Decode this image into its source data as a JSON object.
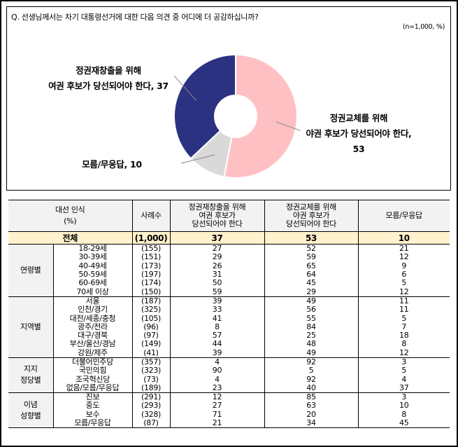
{
  "question": "Q. 선생님께서는 차기 대통령선거에 대한 다음 의견 중 어디에 더 공감하십니까?",
  "note": "(n=1,000,  %)",
  "chart_data": {
    "type": "pie",
    "subtype": "donut",
    "title": "Q. 선생님께서는 차기 대통령선거에 대한 다음 의견 중 어디에 더 공감하십니까?",
    "note": "(n=1,000, %)",
    "categories": [
      "정권재창출을 위해 여권 후보가 당선되어야 한다",
      "정권교체를 위해 야권 후보가 당선되어야 한다",
      "모름/무응답"
    ],
    "values": [
      37,
      53,
      10
    ],
    "colors": [
      "#2b3282",
      "#ffc0c4",
      "#d9d9d9"
    ],
    "labels": [
      "정권재창출을 위해 여권 후보가 당선되어야 한다, 37",
      "정권교체를 위해 야권 후보가 당선되어야 한다, 53",
      "모름/무응답, 10"
    ]
  },
  "labels": {
    "a_line1": "정권재창출을 위해",
    "a_line2": "여권 후보가 당선되어야 한다, 37",
    "b_line1": "정권교체를 위해",
    "b_line2": "야권 후보가 당선되어야 한다,",
    "b_line3": "53",
    "c_line1": "모름/무응답, 10"
  },
  "table": {
    "header": {
      "col0_l1": "대선 인식",
      "col0_l2": "(%)",
      "n": "사례수",
      "c1_l1": "정권재창출을 위해",
      "c1_l2": "여권 후보가",
      "c1_l3": "당선되어야 한다",
      "c2_l1": "정권교체를 위해",
      "c2_l2": "야권 후보가",
      "c2_l3": "당선되어야 한다",
      "c3": "모름/무응답"
    },
    "total": {
      "label": "전체",
      "n": "(1,000)",
      "c1": "37",
      "c2": "53",
      "c3": "10"
    },
    "groups": [
      {
        "name_l1": "연령별",
        "name_l2": "",
        "rows": [
          {
            "label": "18-29세",
            "n": "(155)",
            "c1": "27",
            "c2": "52",
            "c3": "21"
          },
          {
            "label": "30-39세",
            "n": "(151)",
            "c1": "29",
            "c2": "59",
            "c3": "12"
          },
          {
            "label": "40-49세",
            "n": "(173)",
            "c1": "26",
            "c2": "65",
            "c3": "9"
          },
          {
            "label": "50-59세",
            "n": "(197)",
            "c1": "31",
            "c2": "64",
            "c3": "6"
          },
          {
            "label": "60-69세",
            "n": "(174)",
            "c1": "50",
            "c2": "45",
            "c3": "5"
          },
          {
            "label": "70세 이상",
            "n": "(150)",
            "c1": "59",
            "c2": "29",
            "c3": "12"
          }
        ]
      },
      {
        "name_l1": "지역별",
        "name_l2": "",
        "rows": [
          {
            "label": "서울",
            "n": "(187)",
            "c1": "39",
            "c2": "49",
            "c3": "11"
          },
          {
            "label": "인천/경기",
            "n": "(325)",
            "c1": "33",
            "c2": "56",
            "c3": "11"
          },
          {
            "label": "대전/세종/충청",
            "n": "(105)",
            "c1": "41",
            "c2": "55",
            "c3": "5"
          },
          {
            "label": "광주/전라",
            "n": "(96)",
            "c1": "8",
            "c2": "84",
            "c3": "7"
          },
          {
            "label": "대구/경북",
            "n": "(97)",
            "c1": "57",
            "c2": "25",
            "c3": "18"
          },
          {
            "label": "부산/울산/경남",
            "n": "(149)",
            "c1": "44",
            "c2": "48",
            "c3": "8"
          },
          {
            "label": "강원/제주",
            "n": "(41)",
            "c1": "39",
            "c2": "49",
            "c3": "12"
          }
        ]
      },
      {
        "name_l1": "지지",
        "name_l2": "정당별",
        "rows": [
          {
            "label": "더불어민주당",
            "n": "(357)",
            "c1": "4",
            "c2": "92",
            "c3": "3"
          },
          {
            "label": "국민의힘",
            "n": "(323)",
            "c1": "90",
            "c2": "5",
            "c3": "5"
          },
          {
            "label": "조국혁신당",
            "n": "(73)",
            "c1": "4",
            "c2": "92",
            "c3": "4"
          },
          {
            "label": "없음/모름/무응답",
            "n": "(189)",
            "c1": "23",
            "c2": "40",
            "c3": "37"
          }
        ]
      },
      {
        "name_l1": "이념",
        "name_l2": "성향별",
        "rows": [
          {
            "label": "진보",
            "n": "(291)",
            "c1": "12",
            "c2": "85",
            "c3": "3"
          },
          {
            "label": "중도",
            "n": "(293)",
            "c1": "27",
            "c2": "63",
            "c3": "10"
          },
          {
            "label": "보수",
            "n": "(328)",
            "c1": "71",
            "c2": "20",
            "c3": "8"
          },
          {
            "label": "모름/무응답",
            "n": "(87)",
            "c1": "21",
            "c2": "34",
            "c3": "45"
          }
        ]
      }
    ]
  }
}
